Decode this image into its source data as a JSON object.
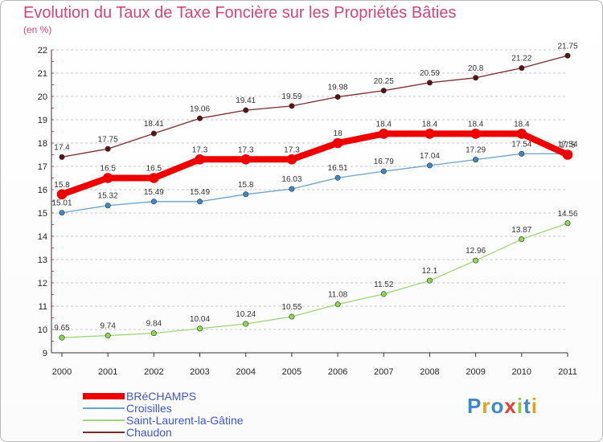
{
  "header": {
    "title": "Evolution du Taux de Taxe Foncière sur les Propriétés Bâties",
    "subtitle": "(en %)"
  },
  "logo": {
    "text": "Proxiti"
  },
  "colors": {
    "title": "#d1457a",
    "legend_text": "#3e56c8",
    "grid": "#c8c8c8",
    "axis_ticks": "#d1457a"
  },
  "chart_data": {
    "type": "line",
    "title": "Evolution du Taux de Taxe Foncière sur les Propriétés Bâties",
    "ylabel": "(en %)",
    "xlabel": "",
    "x": [
      "2000",
      "2001",
      "2002",
      "2003",
      "2004",
      "2005",
      "2006",
      "2007",
      "2008",
      "2009",
      "2010",
      "2011"
    ],
    "ylim": [
      9,
      22
    ],
    "yticks": [
      9,
      10,
      11,
      12,
      13,
      14,
      15,
      16,
      17,
      18,
      19,
      20,
      21,
      22
    ],
    "grid": "horizontal dashed",
    "legend_position": "bottom-left",
    "series": [
      {
        "name": "Chaudon",
        "color": "#7a2a2a",
        "marker": "#5a1212",
        "width": 1.3,
        "values": [
          17.4,
          17.75,
          18.41,
          19.06,
          19.41,
          19.59,
          19.98,
          20.25,
          20.59,
          20.8,
          21.22,
          21.75
        ],
        "labels": [
          "17.4",
          "17.75",
          "18.41",
          "19.06",
          "19.41",
          "19.59",
          "19.98",
          "20.25",
          "20.59",
          "20.8",
          "21.22",
          "21.75"
        ]
      },
      {
        "name": "Saint-Laurent-la-Gâtine",
        "color": "#9fd67a",
        "marker": "#8dd84c",
        "width": 1.3,
        "values": [
          9.65,
          9.74,
          9.84,
          10.04,
          10.24,
          10.55,
          11.08,
          11.52,
          12.1,
          12.96,
          13.87,
          14.56
        ],
        "labels": [
          "9.65",
          "9.74",
          "9.84",
          "10.04",
          "10.24",
          "10.55",
          "11.08",
          "11.52",
          "12.1",
          "12.96",
          "13.87",
          "14.56"
        ]
      },
      {
        "name": "Croisilles",
        "color": "#6aa3cc",
        "marker": "#3d88c7",
        "width": 1.3,
        "values": [
          15.01,
          15.32,
          15.49,
          15.49,
          15.8,
          16.03,
          16.51,
          16.79,
          17.04,
          17.29,
          17.54,
          17.54
        ],
        "labels": [
          "15.01",
          "15.32",
          "15.49",
          "15.49",
          "15.8",
          "16.03",
          "16.51",
          "16.79",
          "17.04",
          "17.29",
          "17.54",
          "17.54"
        ]
      },
      {
        "name": "BRéCHAMPS",
        "color": "#ee0000",
        "marker": "#ee0000",
        "width": 8,
        "values": [
          15.8,
          16.5,
          16.5,
          17.3,
          17.3,
          17.3,
          18,
          18.4,
          18.4,
          18.4,
          18.4,
          17.5
        ],
        "labels": [
          "15.8",
          "16.5",
          "16.5",
          "17.3",
          "17.3",
          "17.3",
          "18",
          "18.4",
          "18.4",
          "18.4",
          "18.4",
          "17.5"
        ]
      }
    ]
  },
  "legend": {
    "items": [
      {
        "label": "BRéCHAMPS",
        "color": "#ee0000",
        "thickness": 8
      },
      {
        "label": "Croisilles",
        "color": "#6aa3cc",
        "thickness": 2
      },
      {
        "label": "Saint-Laurent-la-Gâtine",
        "color": "#9fd67a",
        "thickness": 2
      },
      {
        "label": "Chaudon",
        "color": "#7a2a2a",
        "thickness": 2
      }
    ]
  }
}
